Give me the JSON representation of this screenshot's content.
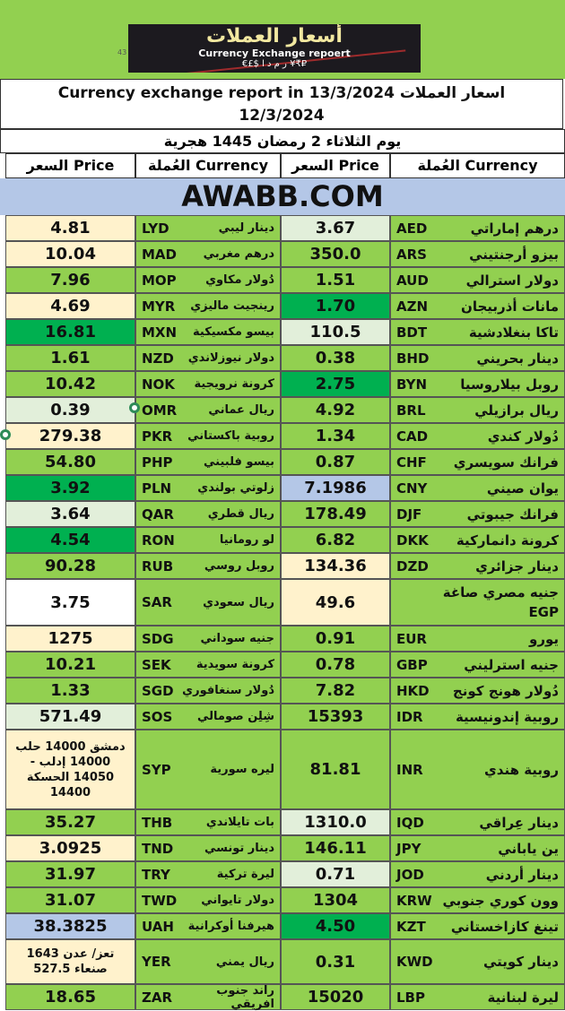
{
  "banner": {
    "logo_title": "أسعار العملات",
    "logo_subtitle": "Currency Exchange repoert",
    "logo_symbols": "€£$ ر م د ا  ¥₹₽",
    "side_number": "43"
  },
  "header": {
    "title_line1": "Currency exchange report in 13/3/2024 اسعار العملات",
    "title_line2": "12/3/2024",
    "hijri_date": "يوم الثلاثاء 2 رمضان 1445 هجرية",
    "col_price_left": "السعر Price",
    "col_currency_left": "العُملة Currency",
    "col_price_right": "السعر Price",
    "col_currency_right": "العُملة Currency",
    "website": "AWABB.COM"
  },
  "colors": {
    "green": "#92d050",
    "dark_green": "#00b050",
    "light_green": "#e2efda",
    "peach": "#fff2cc",
    "blue": "#b4c7e7",
    "white": "#ffffff"
  },
  "rows": [
    {
      "r_code": "AED",
      "r_ar": "درهم إماراتي",
      "r_price": "3.67",
      "r_bg": "light_green",
      "l_code": "LYD",
      "l_ar": "دينار ليبي",
      "l_price": "4.81",
      "l_bg": "peach",
      "h": 29
    },
    {
      "r_code": "ARS",
      "r_ar": "بيزو أرجنتيني",
      "r_price": "350.0",
      "r_bg": "green",
      "l_code": "MAD",
      "l_ar": "درهم مغربي",
      "l_price": "10.04",
      "l_bg": "peach",
      "h": 29
    },
    {
      "r_code": "AUD",
      "r_ar": "دولار استرالي",
      "r_price": "1.51",
      "r_bg": "green",
      "l_code": "MOP",
      "l_ar": "دُولار مكاوي",
      "l_price": "7.96",
      "l_bg": "green",
      "h": 29
    },
    {
      "r_code": "AZN",
      "r_ar": "مانات أذربيجان",
      "r_price": "1.70",
      "r_bg": "dark_green",
      "l_code": "MYR",
      "l_ar": "رينجيت ماليزي",
      "l_price": "4.69",
      "l_bg": "peach",
      "h": 29
    },
    {
      "r_code": "BDT",
      "r_ar": "تاكا بنغلادشية",
      "r_price": "110.5",
      "r_bg": "light_green",
      "l_code": "MXN",
      "l_ar": "بيسو مكسيكية",
      "l_price": "16.81",
      "l_bg": "dark_green",
      "h": 29
    },
    {
      "r_code": "BHD",
      "r_ar": "دينار بحريني",
      "r_price": "0.38",
      "r_bg": "green",
      "l_code": "NZD",
      "l_ar": "دولار نيوزلاندي",
      "l_price": "1.61",
      "l_bg": "green",
      "h": 29
    },
    {
      "r_code": "BYN",
      "r_ar": "روبل بيلاروسيا",
      "r_price": "2.75",
      "r_bg": "dark_green",
      "l_code": "NOK",
      "l_ar": "كرونة نرويجية",
      "l_price": "10.42",
      "l_bg": "green",
      "h": 29
    },
    {
      "r_code": "BRL",
      "r_ar": "ريال برازيلي",
      "r_price": "4.92",
      "r_bg": "green",
      "l_code": "OMR",
      "l_ar": "ريال عماني",
      "l_price": "0.39",
      "l_bg": "light_green",
      "h": 29
    },
    {
      "r_code": "CAD",
      "r_ar": "دُولار كندي",
      "r_price": "1.34",
      "r_bg": "green",
      "l_code": "PKR",
      "l_ar": "روبية باكستاني",
      "l_price": "279.38",
      "l_bg": "peach",
      "h": 29
    },
    {
      "r_code": "CHF",
      "r_ar": "فرانك سويسري",
      "r_price": "0.87",
      "r_bg": "green",
      "l_code": "PHP",
      "l_ar": "بيسو فلبيني",
      "l_price": "54.80",
      "l_bg": "green",
      "h": 29
    },
    {
      "r_code": "CNY",
      "r_ar": "يوان صيني",
      "r_price": "7.1986",
      "r_bg": "blue",
      "l_code": "PLN",
      "l_ar": "زلوتي بولندي",
      "l_price": "3.92",
      "l_bg": "dark_green",
      "h": 29
    },
    {
      "r_code": "DJF",
      "r_ar": "فرانك جيبوتي",
      "r_price": "178.49",
      "r_bg": "green",
      "l_code": "QAR",
      "l_ar": "ريال قطري",
      "l_price": "3.64",
      "l_bg": "light_green",
      "h": 29
    },
    {
      "r_code": "DKK",
      "r_ar": "كرونة دانماركية",
      "r_price": "6.82",
      "r_bg": "green",
      "l_code": "RON",
      "l_ar": "لو رومانيا",
      "l_price": "4.54",
      "l_bg": "dark_green",
      "h": 29
    },
    {
      "r_code": "DZD",
      "r_ar": "دينار جزائري",
      "r_price": "134.36",
      "r_bg": "peach",
      "l_code": "RUB",
      "l_ar": "روبل روسي",
      "l_price": "90.28",
      "l_bg": "green",
      "h": 29
    },
    {
      "r_code": "EGP",
      "r_ar": "جنيه مصري صاغة",
      "r_price": "49.6",
      "r_bg": "peach",
      "l_code": "SAR",
      "l_ar": "ريال سعودي",
      "l_price": "3.75",
      "l_bg": "white",
      "h": 52,
      "r_code_below": true
    },
    {
      "r_code": "EUR",
      "r_ar": "يورو",
      "r_price": "0.91",
      "r_bg": "green",
      "l_code": "SDG",
      "l_ar": "جنيه سوداني",
      "l_price": "1275",
      "l_bg": "peach",
      "h": 29
    },
    {
      "r_code": "GBP",
      "r_ar": "جنيه استرليني",
      "r_price": "0.78",
      "r_bg": "green",
      "l_code": "SEK",
      "l_ar": "كرونة سويدية",
      "l_price": "10.21",
      "l_bg": "green",
      "h": 29
    },
    {
      "r_code": "HKD",
      "r_ar": "دُولار هونج كونج",
      "r_price": "7.82",
      "r_bg": "green",
      "l_code": "SGD",
      "l_ar": "دُولار سنغافوري",
      "l_price": "1.33",
      "l_bg": "green",
      "h": 29
    },
    {
      "r_code": "IDR",
      "r_ar": "روبية إندونيسية",
      "r_price": "15393",
      "r_bg": "green",
      "l_code": "SOS",
      "l_ar": "شِلِن صومالي",
      "l_price": "571.49",
      "l_bg": "light_green",
      "h": 29
    },
    {
      "r_code": "INR",
      "r_ar": "روبية هندي",
      "r_price": "81.81",
      "r_bg": "green",
      "l_code": "SYP",
      "l_ar": "ليره سورية",
      "l_price": "دمشق 14000 حلب\n14000 إدلب -\n14050 الحسكة\n14400",
      "l_bg": "peach",
      "h": 89,
      "l_note": true
    },
    {
      "r_code": "IQD",
      "r_ar": "دينار عِراقي",
      "r_price": "1310.0",
      "r_bg": "light_green",
      "l_code": "THB",
      "l_ar": "بات تايلاندي",
      "l_price": "35.27",
      "l_bg": "green",
      "h": 29
    },
    {
      "r_code": "JPY",
      "r_ar": "ين ياباني",
      "r_price": "146.11",
      "r_bg": "green",
      "l_code": "TND",
      "l_ar": "دينار تونسي",
      "l_price": "3.0925",
      "l_bg": "peach",
      "h": 29
    },
    {
      "r_code": "JOD",
      "r_ar": "دينار أردني",
      "r_price": "0.71",
      "r_bg": "light_green",
      "l_code": "TRY",
      "l_ar": "ليرة تركية",
      "l_price": "31.97",
      "l_bg": "green",
      "h": 29
    },
    {
      "r_code": "KRW",
      "r_ar": "وون كوري جنوبي",
      "r_price": "1304",
      "r_bg": "green",
      "l_code": "TWD",
      "l_ar": "دولار تايواني",
      "l_price": "31.07",
      "l_bg": "green",
      "h": 29
    },
    {
      "r_code": "KZT",
      "r_ar": "تينغ كازاخستاني",
      "r_price": "4.50",
      "r_bg": "dark_green",
      "l_code": "UAH",
      "l_ar": "هيرفنا أوكرانية",
      "l_price": "38.3825",
      "l_bg": "blue",
      "h": 29
    },
    {
      "r_code": "KWD",
      "r_ar": "دينار كويتي",
      "r_price": "0.31",
      "r_bg": "green",
      "l_code": "YER",
      "l_ar": "ريال يمني",
      "l_price": "تعز/ عدن 1643\nصنعاء 527.5",
      "l_bg": "peach",
      "h": 50,
      "l_note": true
    },
    {
      "r_code": "LBP",
      "r_ar": "ليرة لبنانية",
      "r_price": "15020",
      "r_bg": "green",
      "l_code": "ZAR",
      "l_ar": "راند جنوب افريقي",
      "l_price": "18.65",
      "l_bg": "green",
      "h": 29
    }
  ]
}
